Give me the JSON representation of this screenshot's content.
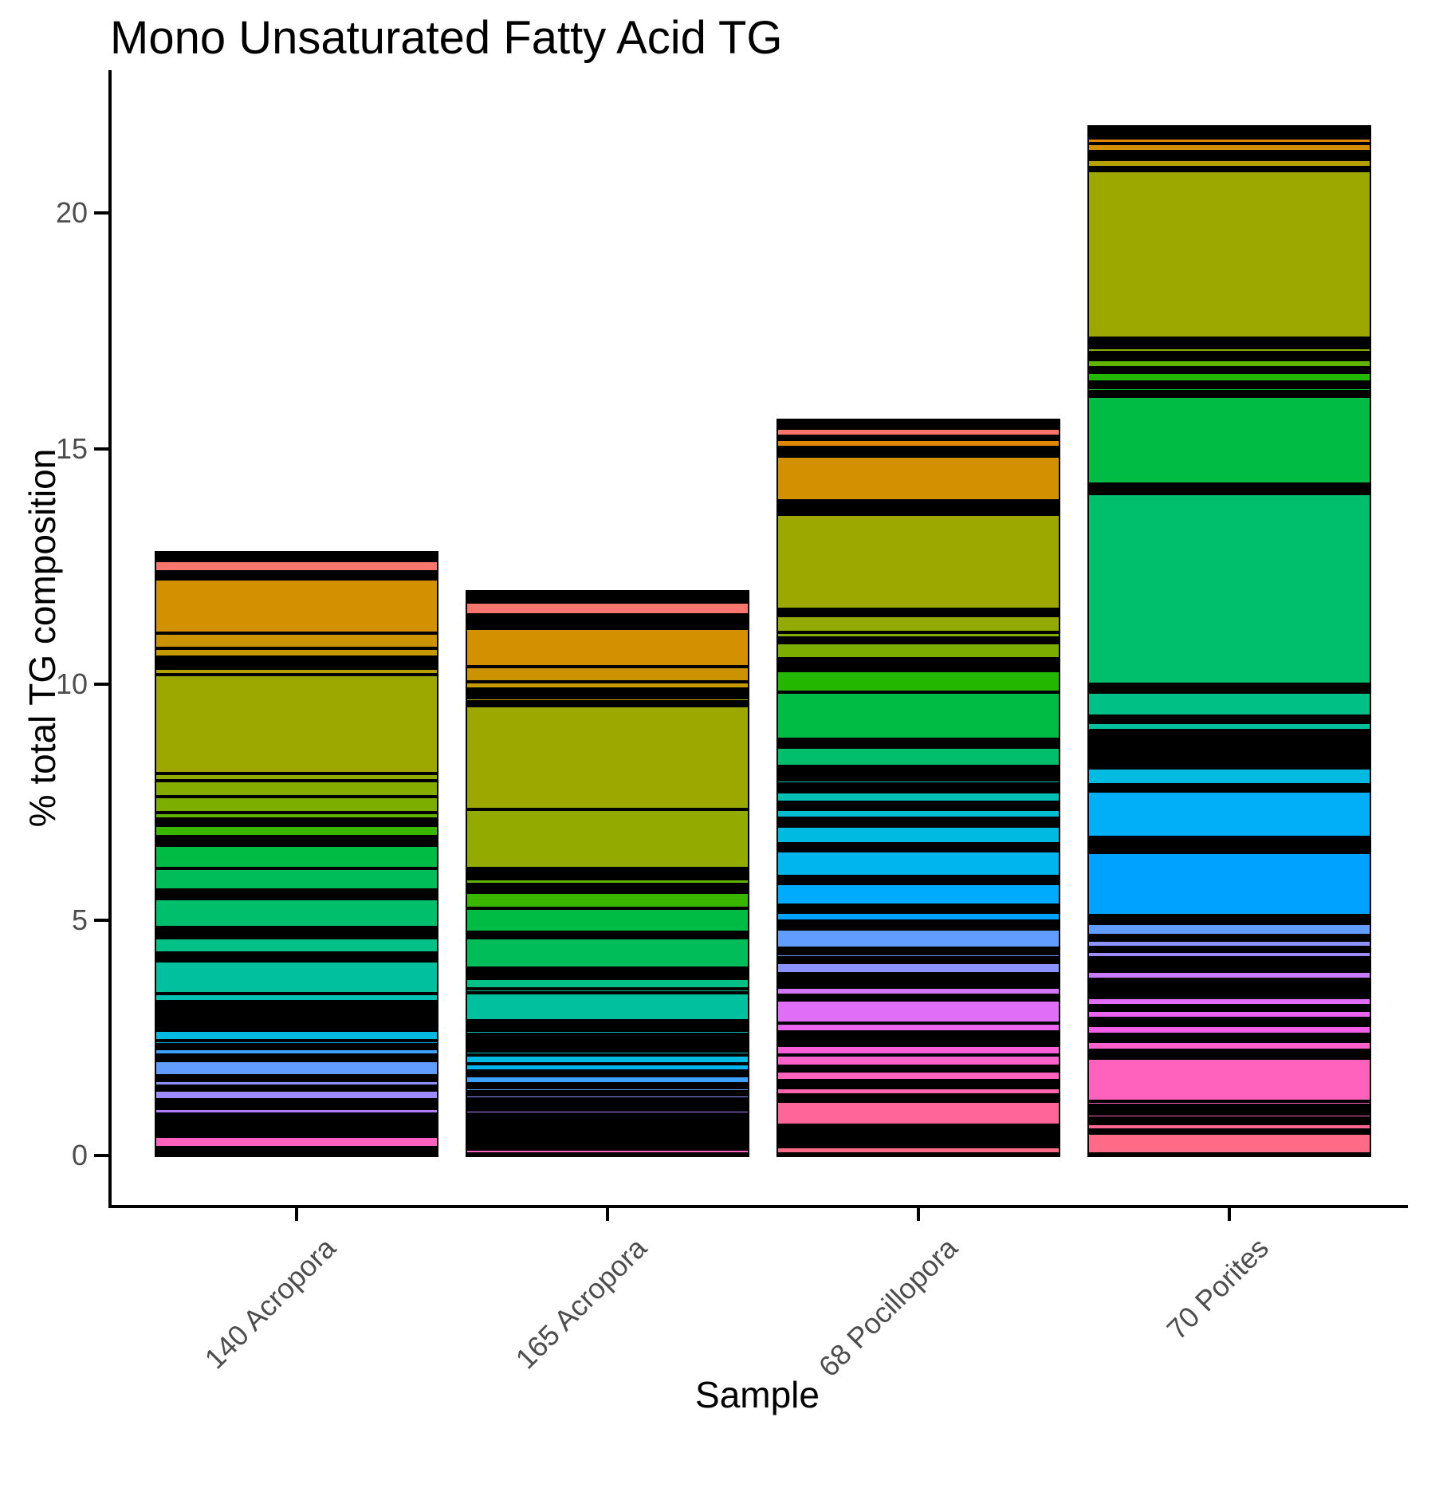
{
  "colors": {
    "background": "#ffffff",
    "axis_line": "#000000",
    "axis_text": "#4d4d4d",
    "title_text": "#000000",
    "segment_border": "#000000"
  },
  "chart_data": {
    "type": "bar",
    "stacked": true,
    "title": "Mono Unsaturated Fatty Acid TG",
    "xlabel": "Sample",
    "ylabel": "% total TG composition",
    "ylim": [
      0,
      22
    ],
    "yticks": [
      0,
      5,
      10,
      15,
      20
    ],
    "grid": false,
    "legend": "none",
    "categories": [
      "140 Acropora",
      "165 Acropora",
      "68 Pocillopora",
      "70 Porites"
    ],
    "totals_pct": [
      12.85,
      12.0,
      15.58,
      21.83
    ],
    "note": "Stacked TG species segments listed top-to-bottom. v = percent of total TG composition (estimated from pixels), c = fill color. Rows with c=#000000 are clusters of very thin segments that render as black bands.",
    "bars": [
      {
        "category": "140 Acropora",
        "segments": [
          {
            "v": 0.2,
            "c": "#000000"
          },
          {
            "v": 0.25,
            "c": "#F8766D"
          },
          {
            "v": 0.15,
            "c": "#000000"
          },
          {
            "v": 1.15,
            "c": "#D39000"
          },
          {
            "v": 0.31,
            "c": "#CC9300"
          },
          {
            "v": 0.19,
            "c": "#C49A00"
          },
          {
            "v": 0.24,
            "c": "#000000"
          },
          {
            "v": 0.14,
            "c": "#B4A100"
          },
          {
            "v": 2.1,
            "c": "#9CA700"
          },
          {
            "v": 0.14,
            "c": "#93AA00"
          },
          {
            "v": 0.34,
            "c": "#84AD00"
          },
          {
            "v": 0.34,
            "c": "#7CAE00"
          },
          {
            "v": 0.14,
            "c": "#62B200"
          },
          {
            "v": 0.14,
            "c": "#000000"
          },
          {
            "v": 0.24,
            "c": "#39B600"
          },
          {
            "v": 0.17,
            "c": "#000000"
          },
          {
            "v": 0.5,
            "c": "#00BB44"
          },
          {
            "v": 0.45,
            "c": "#00BC59"
          },
          {
            "v": 0.2,
            "c": "#000000"
          },
          {
            "v": 0.6,
            "c": "#00BF6C"
          },
          {
            "v": 0.22,
            "c": "#000000"
          },
          {
            "v": 0.32,
            "c": "#00C085"
          },
          {
            "v": 0.17,
            "c": "#000000"
          },
          {
            "v": 0.7,
            "c": "#00C09E"
          },
          {
            "v": 0.17,
            "c": "#00C1B2"
          },
          {
            "v": 0.42,
            "c": "#000000"
          },
          {
            "v": 0.05,
            "c": "#00C1C3"
          },
          {
            "v": 0.12,
            "c": "#000000"
          },
          {
            "v": 0.22,
            "c": "#00BAE2"
          },
          {
            "v": 0.08,
            "c": "#00B4EE"
          },
          {
            "v": 0.08,
            "c": "#000000"
          },
          {
            "v": 0.14,
            "c": "#3DA1FF"
          },
          {
            "v": 0.12,
            "c": "#000000"
          },
          {
            "v": 0.33,
            "c": "#619CFF"
          },
          {
            "v": 0.1,
            "c": "#000000"
          },
          {
            "v": 0.12,
            "c": "#8B93FF"
          },
          {
            "v": 0.08,
            "c": "#000000"
          },
          {
            "v": 0.2,
            "c": "#9E8CFF"
          },
          {
            "v": 0.19,
            "c": "#000000"
          },
          {
            "v": 0.12,
            "c": "#B27FFF"
          },
          {
            "v": 0.3,
            "c": "#000000"
          },
          {
            "v": 0.07,
            "c": "#F25FE6"
          },
          {
            "v": 0.1,
            "c": "#000000"
          },
          {
            "v": 0.24,
            "c": "#FF62BC"
          },
          {
            "v": 0.2,
            "c": "#000000"
          }
        ]
      },
      {
        "category": "165 Acropora",
        "segments": [
          {
            "v": 0.25,
            "c": "#000000"
          },
          {
            "v": 0.28,
            "c": "#F8766D"
          },
          {
            "v": 0.29,
            "c": "#000000"
          },
          {
            "v": 0.8,
            "c": "#D39000"
          },
          {
            "v": 0.32,
            "c": "#CC9300"
          },
          {
            "v": 0.15,
            "c": "#C49A00"
          },
          {
            "v": 0.12,
            "c": "#000000"
          },
          {
            "v": 0.08,
            "c": "#B4A100"
          },
          {
            "v": 0.08,
            "c": "#ABA300"
          },
          {
            "v": 0.08,
            "c": "#000000"
          },
          {
            "v": 2.2,
            "c": "#9CA700"
          },
          {
            "v": 1.25,
            "c": "#93AA00"
          },
          {
            "v": 0.08,
            "c": "#84AD00"
          },
          {
            "v": 0.14,
            "c": "#000000"
          },
          {
            "v": 0.12,
            "c": "#62B200"
          },
          {
            "v": 0.17,
            "c": "#000000"
          },
          {
            "v": 0.35,
            "c": "#39B600"
          },
          {
            "v": 0.5,
            "c": "#00BB44"
          },
          {
            "v": 0.12,
            "c": "#000000"
          },
          {
            "v": 0.65,
            "c": "#00BC59"
          },
          {
            "v": 0.22,
            "c": "#000000"
          },
          {
            "v": 0.22,
            "c": "#00C085"
          },
          {
            "v": 0.07,
            "c": "#00C090"
          },
          {
            "v": 0.6,
            "c": "#00C09E"
          },
          {
            "v": 0.2,
            "c": "#000000"
          },
          {
            "v": 0.08,
            "c": "#00C1B2"
          },
          {
            "v": 0.37,
            "c": "#000000"
          },
          {
            "v": 0.08,
            "c": "#00C1C3"
          },
          {
            "v": 0.19,
            "c": "#00BAE2"
          },
          {
            "v": 0.15,
            "c": "#00B4EE"
          },
          {
            "v": 0.1,
            "c": "#000000"
          },
          {
            "v": 0.17,
            "c": "#3DA1FF"
          },
          {
            "v": 0.08,
            "c": "#000000"
          },
          {
            "v": 0.08,
            "c": "#619CFF"
          },
          {
            "v": 0.08,
            "c": "#000000"
          },
          {
            "v": 0.08,
            "c": "#8B93FF"
          },
          {
            "v": 0.08,
            "c": "#000000"
          },
          {
            "v": 0.08,
            "c": "#9E8CFF"
          },
          {
            "v": 0.08,
            "c": "#000000"
          },
          {
            "v": 0.08,
            "c": "#B27FFF"
          },
          {
            "v": 0.68,
            "c": "#000000"
          },
          {
            "v": 0.05,
            "c": "#F25FE6"
          },
          {
            "v": 0.1,
            "c": "#FF62BC"
          },
          {
            "v": 0.05,
            "c": "#000000"
          }
        ]
      },
      {
        "category": "68 Pocillopora",
        "segments": [
          {
            "v": 0.2,
            "c": "#000000"
          },
          {
            "v": 0.17,
            "c": "#F8766D"
          },
          {
            "v": 0.08,
            "c": "#000000"
          },
          {
            "v": 0.17,
            "c": "#E08700"
          },
          {
            "v": 0.17,
            "c": "#000000"
          },
          {
            "v": 0.95,
            "c": "#D39000"
          },
          {
            "v": 0.3,
            "c": "#000000"
          },
          {
            "v": 2.0,
            "c": "#9CA700"
          },
          {
            "v": 0.15,
            "c": "#000000"
          },
          {
            "v": 0.35,
            "c": "#93AA00"
          },
          {
            "v": 0.12,
            "c": "#84AD00"
          },
          {
            "v": 0.1,
            "c": "#000000"
          },
          {
            "v": 0.34,
            "c": "#7CAE00"
          },
          {
            "v": 0.25,
            "c": "#000000"
          },
          {
            "v": 0.45,
            "c": "#24B700"
          },
          {
            "v": 1.0,
            "c": "#00BB44"
          },
          {
            "v": 0.17,
            "c": "#000000"
          },
          {
            "v": 0.42,
            "c": "#00BF6C"
          },
          {
            "v": 0.12,
            "c": "#000000"
          },
          {
            "v": 0.08,
            "c": "#00C085"
          },
          {
            "v": 0.08,
            "c": "#000000"
          },
          {
            "v": 0.08,
            "c": "#00C09E"
          },
          {
            "v": 0.17,
            "c": "#000000"
          },
          {
            "v": 0.22,
            "c": "#00C1B2"
          },
          {
            "v": 0.08,
            "c": "#00C1C3"
          },
          {
            "v": 0.08,
            "c": "#000000"
          },
          {
            "v": 0.19,
            "c": "#00BED2"
          },
          {
            "v": 0.17,
            "c": "#000000"
          },
          {
            "v": 0.37,
            "c": "#00BAE2"
          },
          {
            "v": 0.14,
            "c": "#000000"
          },
          {
            "v": 0.55,
            "c": "#00B4EE"
          },
          {
            "v": 0.15,
            "c": "#000000"
          },
          {
            "v": 0.46,
            "c": "#00ABFD"
          },
          {
            "v": 0.15,
            "c": "#000000"
          },
          {
            "v": 0.19,
            "c": "#00A2FF"
          },
          {
            "v": 0.07,
            "c": "#3DA1FF"
          },
          {
            "v": 0.1,
            "c": "#000000"
          },
          {
            "v": 0.4,
            "c": "#619CFF"
          },
          {
            "v": 0.12,
            "c": "#000000"
          },
          {
            "v": 0.08,
            "c": "#7897FF"
          },
          {
            "v": 0.1,
            "c": "#000000"
          },
          {
            "v": 0.25,
            "c": "#8B93FF"
          },
          {
            "v": 0.05,
            "c": "#9E8CFF"
          },
          {
            "v": 0.22,
            "c": "#000000"
          },
          {
            "v": 0.17,
            "c": "#D575FB"
          },
          {
            "v": 0.1,
            "c": "#000000"
          },
          {
            "v": 0.48,
            "c": "#E06EF7"
          },
          {
            "v": 0.2,
            "c": "#EA66F1"
          },
          {
            "v": 0.14,
            "c": "#000000"
          },
          {
            "v": 0.05,
            "c": "#F25FE6"
          },
          {
            "v": 0.08,
            "c": "#000000"
          },
          {
            "v": 0.2,
            "c": "#F960D8"
          },
          {
            "v": 0.24,
            "c": "#FE61CA"
          },
          {
            "v": 0.1,
            "c": "#000000"
          },
          {
            "v": 0.2,
            "c": "#FF62BC"
          },
          {
            "v": 0.05,
            "c": "#FF63B3"
          },
          {
            "v": 0.08,
            "c": "#000000"
          },
          {
            "v": 0.15,
            "c": "#FF64AC"
          },
          {
            "v": 0.14,
            "c": "#000000"
          },
          {
            "v": 0.5,
            "c": "#FF6599"
          },
          {
            "v": 0.25,
            "c": "#000000"
          },
          {
            "v": 0.07,
            "c": "#FF6892"
          },
          {
            "v": 0.08,
            "c": "#000000"
          },
          {
            "v": 0.05,
            "c": "#FF6A8C"
          },
          {
            "v": 0.15,
            "c": "#FF6B86"
          },
          {
            "v": 0.05,
            "c": "#000000"
          }
        ]
      },
      {
        "category": "70 Porites",
        "segments": [
          {
            "v": 0.27,
            "c": "#000000"
          },
          {
            "v": 0.12,
            "c": "#E08700"
          },
          {
            "v": 0.17,
            "c": "#D39000"
          },
          {
            "v": 0.17,
            "c": "#000000"
          },
          {
            "v": 0.17,
            "c": "#B4A100"
          },
          {
            "v": 0.05,
            "c": "#A8A400"
          },
          {
            "v": 3.54,
            "c": "#9CA700"
          },
          {
            "v": 0.14,
            "c": "#000000"
          },
          {
            "v": 0.08,
            "c": "#93AA00"
          },
          {
            "v": 0.1,
            "c": "#84AD00"
          },
          {
            "v": 0.15,
            "c": "#000000"
          },
          {
            "v": 0.17,
            "c": "#62B200"
          },
          {
            "v": 0.1,
            "c": "#000000"
          },
          {
            "v": 0.2,
            "c": "#24B700"
          },
          {
            "v": 0.12,
            "c": "#000000"
          },
          {
            "v": 0.08,
            "c": "#00B92F"
          },
          {
            "v": 0.1,
            "c": "#000000"
          },
          {
            "v": 1.86,
            "c": "#00BB44"
          },
          {
            "v": 0.07,
            "c": "#00BC51"
          },
          {
            "v": 0.14,
            "c": "#000000"
          },
          {
            "v": 4.04,
            "c": "#00BF6C"
          },
          {
            "v": 0.17,
            "c": "#000000"
          },
          {
            "v": 0.51,
            "c": "#00C085"
          },
          {
            "v": 0.14,
            "c": "#000000"
          },
          {
            "v": 0.17,
            "c": "#00C09E"
          },
          {
            "v": 0.22,
            "c": "#000000"
          },
          {
            "v": 0.07,
            "c": "#00C1B2"
          },
          {
            "v": 0.1,
            "c": "#000000"
          },
          {
            "v": 0.07,
            "c": "#00C1C3"
          },
          {
            "v": 0.14,
            "c": "#000000"
          },
          {
            "v": 0.08,
            "c": "#00BED2"
          },
          {
            "v": 0.12,
            "c": "#000000"
          },
          {
            "v": 0.34,
            "c": "#00BAE2"
          },
          {
            "v": 0.14,
            "c": "#000000"
          },
          {
            "v": 0.98,
            "c": "#00AFF8"
          },
          {
            "v": 0.15,
            "c": "#000000"
          },
          {
            "v": 0.08,
            "c": "#00ABFD"
          },
          {
            "v": 0.1,
            "c": "#000000"
          },
          {
            "v": 1.34,
            "c": "#00A2FF"
          },
          {
            "v": 0.17,
            "c": "#000000"
          },
          {
            "v": 0.25,
            "c": "#619CFF"
          },
          {
            "v": 0.1,
            "c": "#000000"
          },
          {
            "v": 0.15,
            "c": "#8B93FF"
          },
          {
            "v": 0.08,
            "c": "#000000"
          },
          {
            "v": 0.14,
            "c": "#9E8CFF"
          },
          {
            "v": 0.29,
            "c": "#000000"
          },
          {
            "v": 0.17,
            "c": "#C77CFF"
          },
          {
            "v": 0.05,
            "c": "#000000"
          },
          {
            "v": 0.05,
            "c": "#CC7AF8"
          },
          {
            "v": 0.25,
            "c": "#000000"
          },
          {
            "v": 0.17,
            "c": "#E06EF7"
          },
          {
            "v": 0.1,
            "c": "#000000"
          },
          {
            "v": 0.17,
            "c": "#EA66F1"
          },
          {
            "v": 0.15,
            "c": "#000000"
          },
          {
            "v": 0.19,
            "c": "#F25FE6"
          },
          {
            "v": 0.15,
            "c": "#000000"
          },
          {
            "v": 0.19,
            "c": "#FE61CA"
          },
          {
            "v": 0.17,
            "c": "#000000"
          },
          {
            "v": 0.91,
            "c": "#FF62BC"
          },
          {
            "v": 0.08,
            "c": "#FF63B3"
          },
          {
            "v": 0.19,
            "c": "#000000"
          },
          {
            "v": 0.08,
            "c": "#FF64AC"
          },
          {
            "v": 0.12,
            "c": "#000000"
          },
          {
            "v": 0.14,
            "c": "#FF6791"
          },
          {
            "v": 0.07,
            "c": "#000000"
          },
          {
            "v": 0.44,
            "c": "#FF6B86"
          },
          {
            "v": 0.05,
            "c": "#000000"
          }
        ]
      }
    ]
  }
}
